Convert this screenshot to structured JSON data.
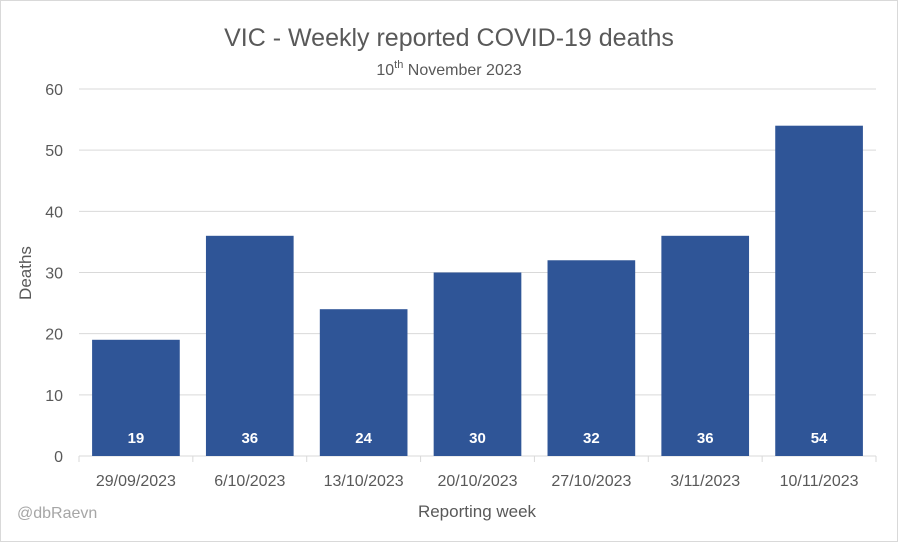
{
  "chart_data": {
    "type": "bar",
    "title": "VIC - Weekly reported COVID-19 deaths",
    "subtitle_day": "10",
    "subtitle_suffix": "th",
    "subtitle_rest": " November 2023",
    "xlabel": "Reporting week",
    "ylabel": "Deaths",
    "categories": [
      "29/09/2023",
      "6/10/2023",
      "13/10/2023",
      "20/10/2023",
      "27/10/2023",
      "3/11/2023",
      "10/11/2023"
    ],
    "values": [
      19,
      36,
      24,
      30,
      32,
      36,
      54
    ],
    "ylim": [
      0,
      60
    ],
    "yticks": [
      0,
      10,
      20,
      30,
      40,
      50,
      60
    ],
    "grid": true,
    "legend": "none"
  },
  "watermark": "@dbRaevn",
  "colors": {
    "bar": "#2f5597",
    "grid": "#d9d9d9",
    "axis_text": "#595959",
    "data_label": "#ffffff"
  }
}
